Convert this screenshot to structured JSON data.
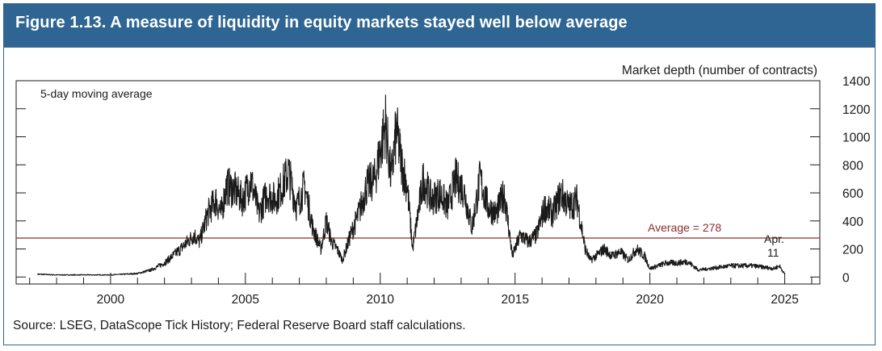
{
  "figure": {
    "title": "Figure 1.13. A measure of liquidity in equity markets stayed well below average",
    "source": "Source: LSEG, DataScope Tick History; Federal Reserve Board staff calculations."
  },
  "colors": {
    "title_bg": "#2e6592",
    "series": "#1a1a1a",
    "average_line": "#8b2d2d"
  },
  "chart_data": {
    "type": "line",
    "title": "A measure of liquidity in equity markets stayed well below average",
    "ylabel": "Market depth (number of contracts)",
    "series_label": "5-day moving average",
    "xlabel": "",
    "xlim": [
      1996.5,
      2026.3
    ],
    "ylim": [
      -50,
      1400
    ],
    "x_ticks": [
      2000,
      2005,
      2010,
      2015,
      2020,
      2025
    ],
    "x_tick_labels": [
      "2000",
      "2005",
      "2010",
      "2015",
      "2020",
      "2025"
    ],
    "y_ticks": [
      0,
      200,
      400,
      600,
      800,
      1000,
      1200,
      1400
    ],
    "y_tick_labels": [
      "0",
      "200",
      "400",
      "600",
      "800",
      "1000",
      "1200",
      "1400"
    ],
    "average": {
      "value": 278,
      "label": "Average = 278"
    },
    "end_annotation": {
      "line1": "Apr.",
      "line2": "11"
    },
    "series": [
      {
        "name": "5-day moving average",
        "x": [
          1997.3,
          1998.0,
          1999.0,
          2000.0,
          2001.0,
          2001.5,
          2002.0,
          2002.3,
          2002.6,
          2002.9,
          2003.1,
          2003.3,
          2003.6,
          2003.9,
          2004.1,
          2004.3,
          2004.6,
          2004.9,
          2005.2,
          2005.5,
          2005.8,
          2006.1,
          2006.3,
          2006.6,
          2006.9,
          2007.2,
          2007.5,
          2007.8,
          2008.0,
          2008.2,
          2008.4,
          2008.6,
          2008.9,
          2009.2,
          2009.5,
          2009.8,
          2010.0,
          2010.2,
          2010.4,
          2010.6,
          2010.8,
          2011.0,
          2011.2,
          2011.4,
          2011.6,
          2011.9,
          2012.2,
          2012.5,
          2012.8,
          2013.1,
          2013.4,
          2013.7,
          2014.0,
          2014.3,
          2014.6,
          2014.9,
          2015.2,
          2015.5,
          2015.8,
          2016.1,
          2016.4,
          2016.7,
          2017.0,
          2017.3,
          2017.6,
          2017.8,
          2018.0,
          2018.3,
          2018.6,
          2018.9,
          2019.2,
          2019.5,
          2019.8,
          2020.0,
          2020.3,
          2020.6,
          2021.0,
          2021.4,
          2021.8,
          2022.2,
          2022.6,
          2023.0,
          2023.4,
          2023.8,
          2024.2,
          2024.6,
          2024.8,
          2025.0
        ],
        "values": [
          20,
          15,
          15,
          15,
          25,
          50,
          100,
          150,
          200,
          260,
          300,
          250,
          450,
          550,
          450,
          650,
          620,
          550,
          700,
          450,
          600,
          550,
          620,
          750,
          500,
          650,
          350,
          200,
          400,
          250,
          200,
          120,
          300,
          450,
          650,
          700,
          900,
          1100,
          700,
          1050,
          800,
          650,
          200,
          450,
          700,
          550,
          600,
          500,
          700,
          620,
          350,
          700,
          500,
          450,
          600,
          150,
          300,
          250,
          300,
          500,
          450,
          600,
          500,
          550,
          200,
          120,
          150,
          200,
          150,
          180,
          120,
          200,
          150,
          60,
          80,
          100,
          100,
          110,
          50,
          60,
          70,
          80,
          80,
          80,
          70,
          60,
          80,
          20
        ]
      }
    ]
  }
}
